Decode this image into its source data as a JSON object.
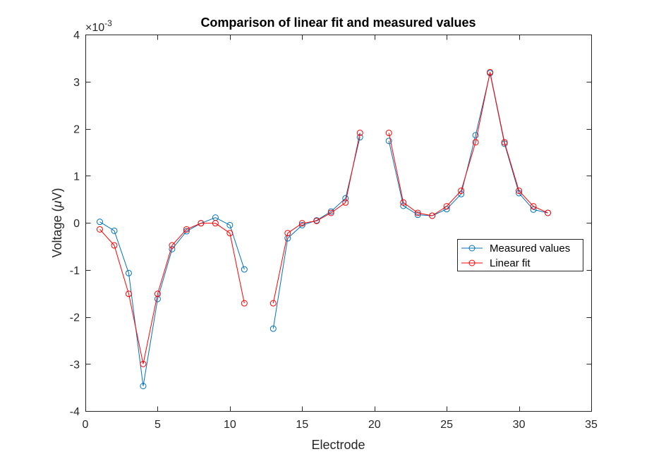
{
  "chart_data": {
    "type": "line",
    "title": "Comparison of linear fit and measured values",
    "xlabel": "Electrode",
    "ylabel_prefix": "Voltage (",
    "ylabel_symbol": "μ",
    "ylabel_suffix": "V)",
    "y_exponent_base": "×10",
    "y_exponent_power": "-3",
    "xlim": [
      0,
      35
    ],
    "ylim": [
      -4,
      4
    ],
    "xticks": [
      0,
      5,
      10,
      15,
      20,
      25,
      30,
      35
    ],
    "yticks": [
      -4,
      -3,
      -2,
      -1,
      0,
      1,
      2,
      3,
      4
    ],
    "grid": false,
    "legend_position": "east",
    "series": [
      {
        "name": "Measured values",
        "color": "#0072BD",
        "marker": "circle",
        "points": [
          [
            1,
            0.02
          ],
          [
            2,
            -0.17
          ],
          [
            3,
            -1.07
          ],
          [
            4,
            -3.47
          ],
          [
            5,
            -1.62
          ],
          [
            6,
            -0.56
          ],
          [
            7,
            -0.18
          ],
          [
            8,
            -0.01
          ],
          [
            9,
            0.11
          ],
          [
            10,
            -0.05
          ],
          [
            11,
            -0.99
          ],
          null,
          [
            13,
            -2.25
          ],
          [
            14,
            -0.33
          ],
          [
            15,
            -0.05
          ],
          [
            16,
            0.05
          ],
          [
            17,
            0.24
          ],
          [
            18,
            0.52
          ],
          [
            19,
            1.82
          ],
          null,
          [
            21,
            1.74
          ],
          [
            22,
            0.36
          ],
          [
            23,
            0.17
          ],
          [
            24,
            0.15
          ],
          [
            25,
            0.29
          ],
          [
            26,
            0.61
          ],
          [
            27,
            1.86
          ],
          [
            28,
            3.18
          ],
          [
            29,
            1.68
          ],
          [
            30,
            0.63
          ],
          [
            31,
            0.28
          ],
          [
            32,
            0.21
          ]
        ]
      },
      {
        "name": "Linear fit",
        "color": "#FF0000",
        "marker": "circle",
        "points": [
          [
            1,
            -0.14
          ],
          [
            2,
            -0.48
          ],
          [
            3,
            -1.51
          ],
          [
            4,
            -3.0
          ],
          [
            5,
            -1.51
          ],
          [
            6,
            -0.48
          ],
          [
            7,
            -0.14
          ],
          [
            8,
            -0.01
          ],
          [
            9,
            -0.01
          ],
          [
            10,
            -0.22
          ],
          [
            11,
            -1.71
          ],
          null,
          [
            13,
            -1.71
          ],
          [
            14,
            -0.22
          ],
          [
            15,
            -0.01
          ],
          [
            16,
            0.04
          ],
          [
            17,
            0.21
          ],
          [
            18,
            0.43
          ],
          [
            19,
            1.91
          ],
          null,
          [
            21,
            1.91
          ],
          [
            22,
            0.43
          ],
          [
            23,
            0.21
          ],
          [
            24,
            0.15
          ],
          [
            25,
            0.35
          ],
          [
            26,
            0.68
          ],
          [
            27,
            1.71
          ],
          [
            28,
            3.2
          ],
          [
            29,
            1.71
          ],
          [
            30,
            0.68
          ],
          [
            31,
            0.35
          ],
          [
            32,
            0.21
          ]
        ]
      }
    ]
  }
}
